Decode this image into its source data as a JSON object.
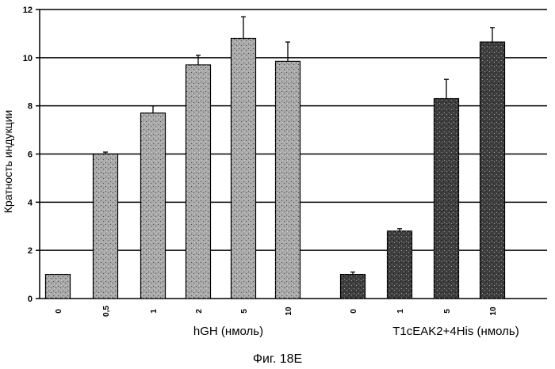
{
  "chart_data": {
    "type": "bar",
    "ylabel": "Кратность индукции",
    "ylim": [
      0,
      12
    ],
    "yticks": [
      0,
      2,
      4,
      6,
      8,
      10,
      12
    ],
    "grid": "horizontal",
    "groups": [
      {
        "label": "hGH (нмоль)",
        "categories": [
          "0",
          "0,5",
          "1",
          "2",
          "5",
          "10"
        ],
        "values": [
          1.0,
          6.0,
          7.7,
          9.7,
          10.8,
          9.85
        ],
        "errors": [
          0.0,
          0.08,
          0.3,
          0.4,
          0.9,
          0.8
        ],
        "fill": "light"
      },
      {
        "label": "T1cEAK2+4His (нмоль)",
        "categories": [
          "0",
          "1",
          "5",
          "10"
        ],
        "values": [
          1.0,
          2.8,
          8.3,
          10.65
        ],
        "errors": [
          0.1,
          0.1,
          0.8,
          0.6
        ],
        "fill": "dark"
      }
    ]
  },
  "caption": "Фиг. 18E",
  "colors": {
    "light": "#a9a9a9",
    "dark": "#3f3f3f",
    "grid": "#000000"
  }
}
